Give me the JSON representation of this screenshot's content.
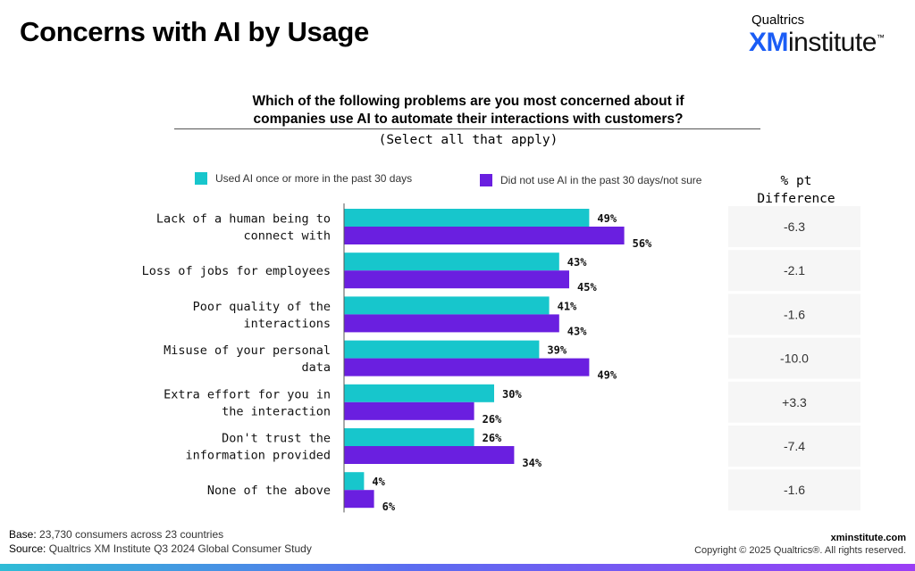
{
  "page": {
    "title": "Concerns with AI by Usage",
    "brand_top": "Qualtrics",
    "brand_xm": "XM",
    "brand_institute": "institute",
    "brand_tm": "™",
    "question_line1": "Which of the following problems are you most concerned about if",
    "question_line2": "companies use AI to automate their interactions with customers?",
    "question_sub": "(Select all that apply)",
    "diff_header_line1": "% pt",
    "diff_header_line2": "Difference",
    "footer_base_label": "Base:",
    "footer_base": " 23,730 consumers across 23 countries",
    "footer_source_label": "Source:",
    "footer_source": " Qualtrics XM Institute Q3 2024 Global Consumer Study",
    "footer_site": "xminstitute.com",
    "footer_copyright": "Copyright © 2025 Qualtrics®. All rights reserved."
  },
  "colors": {
    "series1": "#17c6cc",
    "series2": "#6a1fe0",
    "diff_bg": "#f6f6f6"
  },
  "chart_data": {
    "type": "bar",
    "orientation": "horizontal",
    "title": "Concerns with AI by Usage",
    "categories": [
      [
        "Lack of a human being to",
        "connect with"
      ],
      [
        "Loss of jobs for employees"
      ],
      [
        "Poor quality of the",
        "interactions"
      ],
      [
        "Misuse of your personal",
        "data"
      ],
      [
        "Extra effort for you in",
        "the interaction"
      ],
      [
        "Don't trust the",
        "information provided"
      ],
      [
        "None of the above"
      ]
    ],
    "series": [
      {
        "name": "Used AI once or more in the past 30 days",
        "values": [
          49,
          43,
          41,
          39,
          30,
          26,
          4
        ]
      },
      {
        "name": "Did not use AI in the past 30 days/not sure",
        "values": [
          56,
          45,
          43,
          49,
          26,
          34,
          6
        ]
      }
    ],
    "differences": [
      "-6.3",
      "-2.1",
      "-1.6",
      "-10.0",
      "+3.3",
      "-7.4",
      "-1.6"
    ],
    "value_suffix": "%",
    "xlim": [
      0,
      100
    ],
    "legend": "top"
  }
}
